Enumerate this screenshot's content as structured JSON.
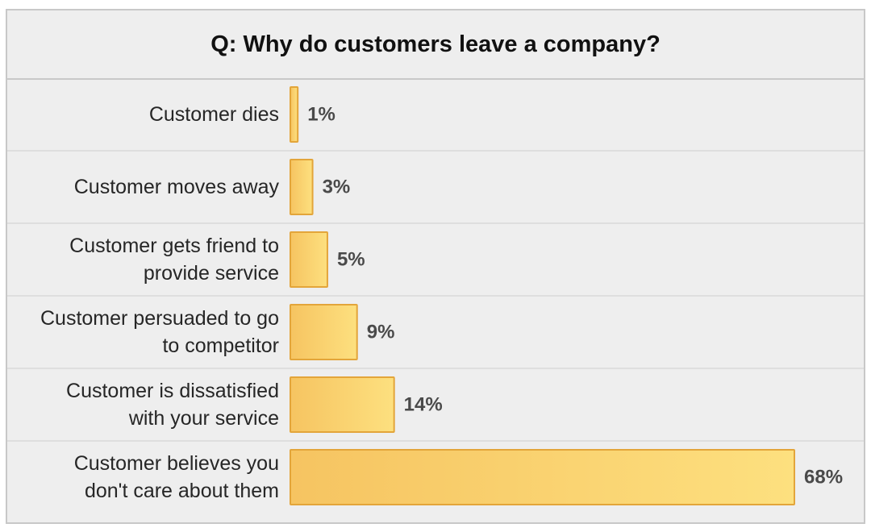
{
  "chart_data": {
    "type": "bar",
    "orientation": "horizontal",
    "title": "Q: Why do customers leave a company?",
    "categories": [
      [
        "Customer dies"
      ],
      [
        "Customer moves away"
      ],
      [
        "Customer gets friend to",
        "provide service"
      ],
      [
        "Customer persuaded to go",
        "to competitor"
      ],
      [
        "Customer is dissatisfied",
        "with your service"
      ],
      [
        "Customer believes you",
        "don't care about them"
      ]
    ],
    "values": [
      1,
      3,
      5,
      9,
      14,
      68
    ],
    "value_labels": [
      "1%",
      "3%",
      "5%",
      "9%",
      "14%",
      "68%"
    ],
    "unit": "%",
    "xlim": [
      0,
      68
    ],
    "grid": false,
    "legend": "none",
    "colors": {
      "bar_fill_start": "#f6c461",
      "bar_fill_end": "#fde07f",
      "bar_stroke": "#e3a53a",
      "background": "#eeeeee",
      "row_divider": "#d9d9d9"
    }
  }
}
